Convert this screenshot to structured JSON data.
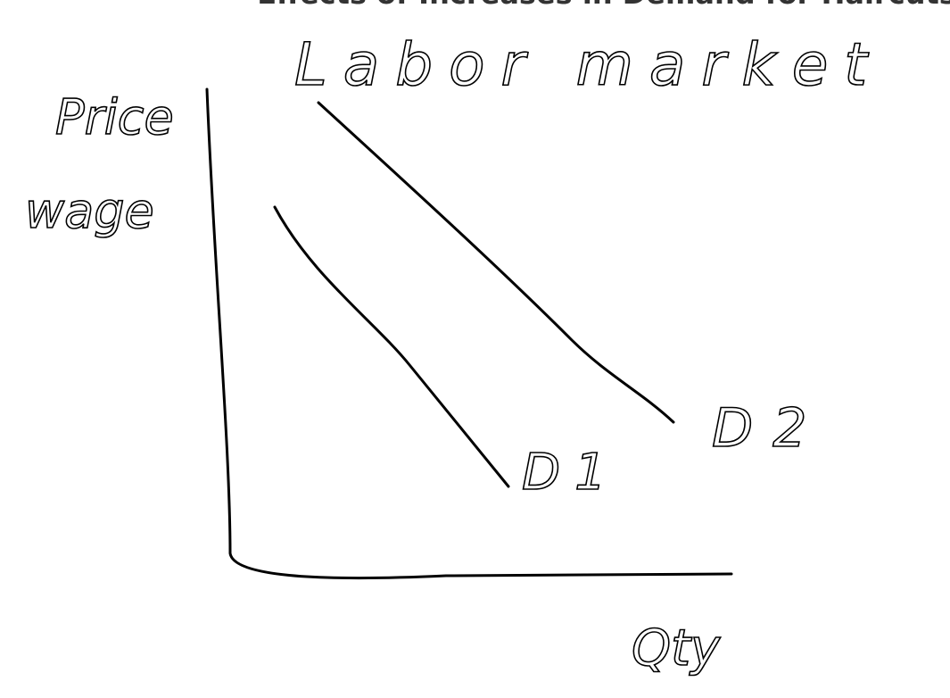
{
  "title": "Effects of Increases in Demand for Haircuts",
  "labels": {
    "market": "Labor market",
    "y_axis": "Price",
    "y_axis_alt": "wage",
    "curve_1": "D1",
    "curve_2": "D2",
    "x_axis": "Qty"
  }
}
